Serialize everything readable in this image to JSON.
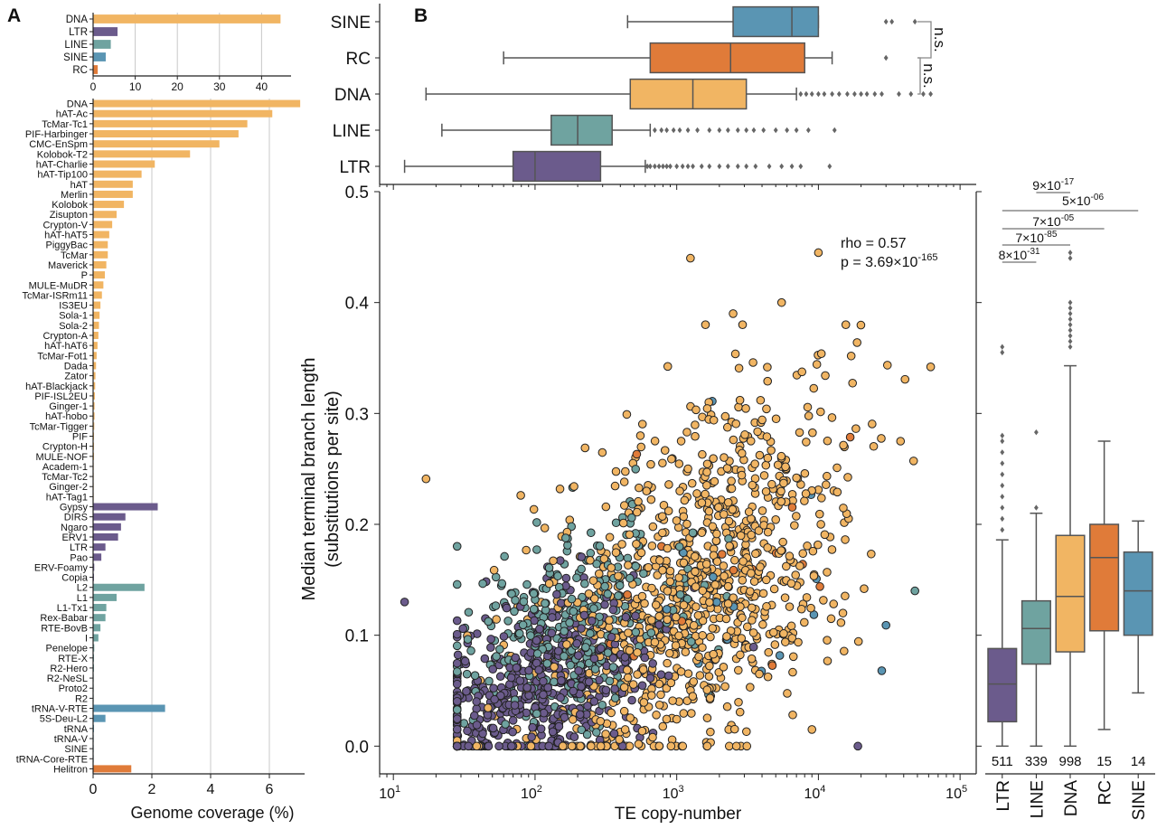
{
  "colors": {
    "DNA": "#F1B563",
    "LTR": "#6B5B8C",
    "LINE": "#6FA3A0",
    "SINE": "#5A95B3",
    "RC": "#E07B39",
    "axis": "#222222",
    "grid": "#c8c8c8",
    "box_edge": "#555555"
  },
  "panel_labels": {
    "a": "A",
    "b": "B"
  },
  "chart_data": [
    {
      "id": "A_top",
      "type": "bar",
      "orientation": "horizontal",
      "categories": [
        "DNA",
        "LTR",
        "LINE",
        "SINE",
        "RC"
      ],
      "values": [
        44.5,
        5.8,
        4.2,
        3.0,
        1.1
      ],
      "color_keys": [
        "DNA",
        "LTR",
        "LINE",
        "SINE",
        "RC"
      ],
      "xlim": [
        0,
        47
      ],
      "xticks": [
        0,
        10,
        20,
        30,
        40
      ],
      "grid": true
    },
    {
      "id": "A_bottom",
      "type": "bar",
      "orientation": "horizontal",
      "xlabel": "Genome coverage (%)",
      "xlim": [
        0,
        7.2
      ],
      "xticks": [
        0,
        2,
        4,
        6
      ],
      "grid": true,
      "categories": [
        "DNA",
        "hAT-Ac",
        "TcMar-Tc1",
        "PIF-Harbinger",
        "CMC-EnSpm",
        "Kolobok-T2",
        "hAT-Charlie",
        "hAT-Tip100",
        "hAT",
        "Merlin",
        "Kolobok",
        "Zisupton",
        "Crypton-V",
        "hAT-hAT5",
        "PiggyBac",
        "TcMar",
        "Maverick",
        "P",
        "MULE-MuDR",
        "TcMar-ISRm11",
        "IS3EU",
        "Sola-1",
        "Sola-2",
        "Crypton-A",
        "hAT-hAT6",
        "TcMar-Fot1",
        "Dada",
        "Zator",
        "hAT-Blackjack",
        "PIF-ISL2EU",
        "Ginger-1",
        "hAT-hobo",
        "TcMar-Tigger",
        "PIF",
        "Crypton-H",
        "MULE-NOF",
        "Academ-1",
        "TcMar-Tc2",
        "Ginger-2",
        "hAT-Tag1",
        "Gypsy",
        "DIRS",
        "Ngaro",
        "ERV1",
        "LTR",
        "Pao",
        "ERV-Foamy",
        "Copia",
        "L2",
        "L1",
        "L1-Tx1",
        "Rex-Babar",
        "RTE-BovB",
        "I",
        "Penelope",
        "RTE-X",
        "R2-Hero",
        "R2-NeSL",
        "Proto2",
        "R2",
        "tRNA-V-RTE",
        "5S-Deu-L2",
        "tRNA",
        "tRNA-V",
        "SINE",
        "tRNA-Core-RTE",
        "Helitron"
      ],
      "values": [
        7.05,
        6.1,
        5.25,
        4.95,
        4.3,
        3.3,
        2.1,
        1.65,
        1.35,
        1.35,
        1.05,
        0.8,
        0.65,
        0.55,
        0.5,
        0.5,
        0.45,
        0.4,
        0.35,
        0.3,
        0.25,
        0.22,
        0.2,
        0.18,
        0.15,
        0.12,
        0.1,
        0.08,
        0.07,
        0.06,
        0.05,
        0.05,
        0.04,
        0.03,
        0.03,
        0.03,
        0.02,
        0.02,
        0.02,
        0.02,
        2.2,
        1.1,
        0.95,
        0.85,
        0.42,
        0.28,
        0.04,
        0.03,
        1.75,
        0.8,
        0.45,
        0.42,
        0.25,
        0.18,
        0.04,
        0.03,
        0.03,
        0.02,
        0.02,
        0.02,
        2.45,
        0.42,
        0.03,
        0.02,
        0.02,
        0.02,
        1.3
      ],
      "groups": [
        {
          "key": "DNA",
          "count": 40
        },
        {
          "key": "LTR",
          "count": 8
        },
        {
          "key": "LINE",
          "count": 12
        },
        {
          "key": "SINE",
          "count": 6
        },
        {
          "key": "RC",
          "count": 1
        }
      ]
    },
    {
      "id": "B_top",
      "type": "box",
      "orientation": "horizontal",
      "scale": "log",
      "categories": [
        "SINE",
        "RC",
        "DNA",
        "LINE",
        "LTR"
      ],
      "boxes": [
        {
          "name": "SINE",
          "whislo": 450,
          "q1": 2500,
          "med": 6500,
          "q3": 10000,
          "whishi": 10000,
          "fliers": [
            30000,
            33000,
            48000
          ]
        },
        {
          "name": "RC",
          "whislo": 60,
          "q1": 650,
          "med": 2400,
          "q3": 8000,
          "whishi": 12500,
          "fliers": [
            30000
          ]
        },
        {
          "name": "DNA",
          "whislo": 17,
          "q1": 470,
          "med": 1300,
          "q3": 3100,
          "whishi": 7000,
          "fliers": [
            7500,
            8200,
            9000,
            10000,
            11000,
            12500,
            14000,
            16000,
            18000,
            20000,
            22000,
            25000,
            28000,
            37000,
            45000,
            55000,
            62000
          ]
        },
        {
          "name": "LINE",
          "whislo": 22,
          "q1": 130,
          "med": 200,
          "q3": 350,
          "whishi": 650,
          "fliers": [
            700,
            780,
            850,
            950,
            1050,
            1200,
            1400,
            1700,
            2000,
            2300,
            2700,
            3100,
            3500,
            4100,
            5000,
            6000,
            7000,
            8500,
            13000
          ]
        },
        {
          "name": "LTR",
          "whislo": 12,
          "q1": 70,
          "med": 100,
          "q3": 290,
          "whishi": 600,
          "fliers": [
            620,
            650,
            700,
            750,
            800,
            850,
            900,
            1000,
            1100,
            1200,
            1300,
            1500,
            1700,
            2000,
            2300,
            2700,
            3100,
            3600,
            4500,
            5500,
            6500,
            7500,
            12000
          ]
        }
      ],
      "annotations": [
        "n.s.",
        "n.s."
      ]
    },
    {
      "id": "B_main",
      "type": "scatter",
      "xlabel": "TE copy-number",
      "ylabel": "Median terminal branch length",
      "ylabel2": "(substitutions per site)",
      "xscale": "log",
      "xlim": [
        8,
        130000
      ],
      "ylim": [
        -0.025,
        0.5
      ],
      "xticks": [
        10,
        100,
        1000,
        10000,
        100000
      ],
      "xtick_labels": [
        {
          "base": "10",
          "exp": "1"
        },
        {
          "base": "10",
          "exp": "2"
        },
        {
          "base": "10",
          "exp": "3"
        },
        {
          "base": "10",
          "exp": "4"
        },
        {
          "base": "10",
          "exp": "5"
        }
      ],
      "yticks": [
        0.0,
        0.1,
        0.2,
        0.3,
        0.4,
        0.5
      ],
      "ytick_labels": [
        "0.0",
        "0.1",
        "0.2",
        "0.3",
        "0.4",
        "0.5"
      ],
      "stat_rho": "rho = 0.57",
      "stat_p": "p = 3.69×10",
      "stat_p_exp": "-165",
      "points_highlight": [
        {
          "x": 12,
          "y": 0.13,
          "g": "LTR"
        },
        {
          "x": 17,
          "y": 0.241,
          "g": "DNA"
        },
        {
          "x": 1250,
          "y": 0.44,
          "g": "DNA"
        },
        {
          "x": 10000,
          "y": 0.445,
          "g": "DNA"
        },
        {
          "x": 5500,
          "y": 0.4,
          "g": "DNA"
        },
        {
          "x": 2500,
          "y": 0.39,
          "g": "DNA"
        },
        {
          "x": 62000,
          "y": 0.342,
          "g": "DNA"
        },
        {
          "x": 38000,
          "y": 0.275,
          "g": "DNA"
        },
        {
          "x": 48000,
          "y": 0.14,
          "g": "LINE"
        },
        {
          "x": 30000,
          "y": 0.109,
          "g": "SINE"
        },
        {
          "x": 28000,
          "y": 0.068,
          "g": "SINE"
        },
        {
          "x": 9000,
          "y": 0.015,
          "g": "DNA"
        },
        {
          "x": 19000,
          "y": 0.0,
          "g": "LTR"
        }
      ],
      "point_counts": {
        "LTR": 511,
        "LINE": 339,
        "DNA": 998,
        "RC": 15,
        "SINE": 14
      }
    },
    {
      "id": "B_right",
      "type": "box",
      "orientation": "vertical",
      "ylim": [
        -0.025,
        0.5
      ],
      "categories": [
        "LTR",
        "LINE",
        "DNA",
        "RC",
        "SINE"
      ],
      "counts": [
        "511",
        "339",
        "998",
        "15",
        "14"
      ],
      "boxes": [
        {
          "name": "LTR",
          "whislo": 0.0,
          "q1": 0.022,
          "med": 0.056,
          "q3": 0.088,
          "whishi": 0.186,
          "fliers": [
            0.195,
            0.205,
            0.215,
            0.225,
            0.235,
            0.245,
            0.255,
            0.265,
            0.275,
            0.28,
            0.355,
            0.36
          ]
        },
        {
          "name": "LINE",
          "whislo": 0.0,
          "q1": 0.074,
          "med": 0.106,
          "q3": 0.131,
          "whishi": 0.21,
          "fliers": [
            0.215,
            0.283
          ]
        },
        {
          "name": "DNA",
          "whislo": 0.0,
          "q1": 0.085,
          "med": 0.135,
          "q3": 0.19,
          "whishi": 0.343,
          "fliers": [
            0.36,
            0.365,
            0.37,
            0.375,
            0.38,
            0.385,
            0.39,
            0.395,
            0.4,
            0.44,
            0.445
          ]
        },
        {
          "name": "RC",
          "whislo": 0.015,
          "q1": 0.104,
          "med": 0.17,
          "q3": 0.2,
          "whishi": 0.275,
          "fliers": []
        },
        {
          "name": "SINE",
          "whislo": 0.048,
          "q1": 0.1,
          "med": 0.14,
          "q3": 0.175,
          "whishi": 0.203,
          "fliers": []
        }
      ],
      "brackets": [
        {
          "from": "LTR",
          "to": "LINE",
          "base": "8×10",
          "exp": "-31"
        },
        {
          "from": "LTR",
          "to": "DNA",
          "base": "7×10",
          "exp": "-85"
        },
        {
          "from": "LTR",
          "to": "RC",
          "base": "7×10",
          "exp": "-05"
        },
        {
          "from": "LTR",
          "to": "SINE",
          "base": "5×10",
          "exp": "-06"
        },
        {
          "from": "LINE",
          "to": "DNA",
          "base": "9×10",
          "exp": "-17"
        }
      ]
    }
  ]
}
